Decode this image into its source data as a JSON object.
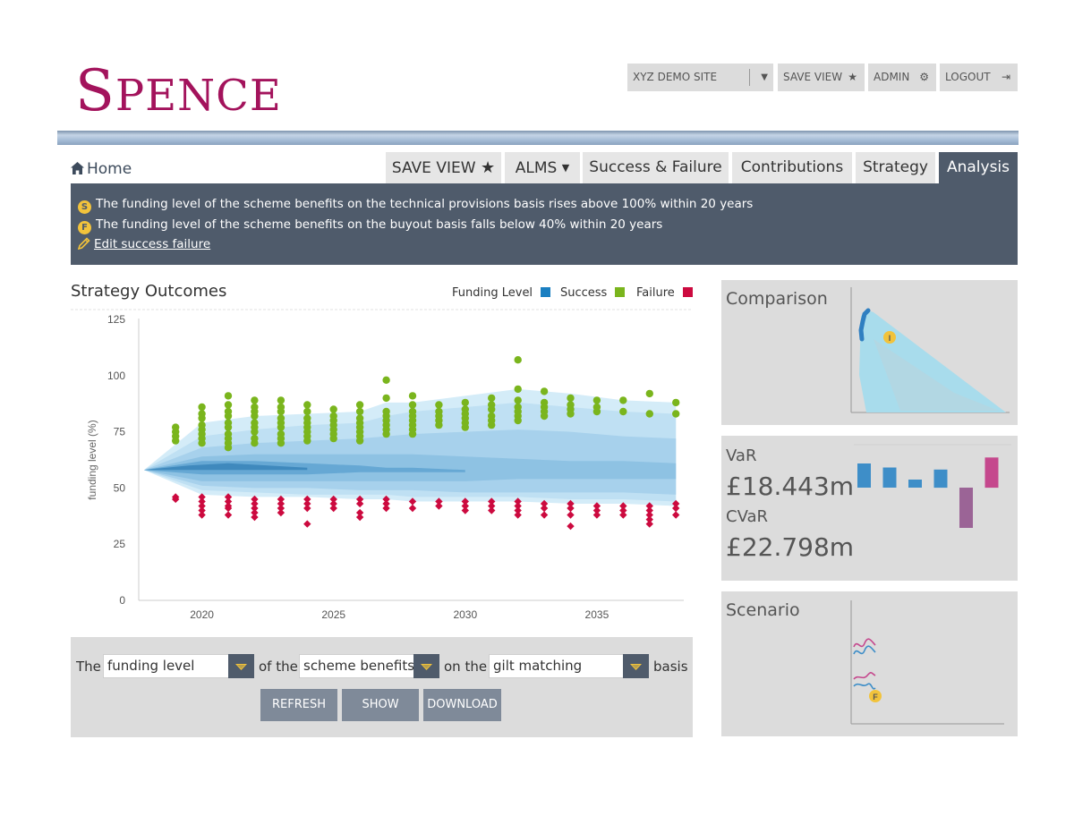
{
  "brand": {
    "logo_initial": "S",
    "logo_rest": "PENCE"
  },
  "topbar": {
    "site": "XYZ DEMO SITE",
    "save_view": "SAVE VIEW",
    "admin": "ADMIN",
    "logout": "LOGOUT"
  },
  "nav": {
    "home": "Home",
    "tabs": [
      "SAVE VIEW",
      "ALMS",
      "Success & Failure",
      "Contributions",
      "Strategy",
      "Analysis"
    ],
    "active": "Analysis"
  },
  "info": {
    "success_badge": "S",
    "success_text": "The funding level of the scheme benefits on the technical provisions basis rises above 100% within 20 years",
    "failure_badge": "F",
    "failure_text": "The funding level of the scheme benefits on the buyout basis falls below 40% within 20 years",
    "edit_link": "Edit success failure"
  },
  "chart": {
    "title": "Strategy Outcomes",
    "legend": [
      {
        "label": "Funding Level",
        "color": "#1a7fc1"
      },
      {
        "label": "Success",
        "color": "#7ab51d"
      },
      {
        "label": "Failure",
        "color": "#cc0a3f"
      }
    ]
  },
  "chart_data": {
    "type": "scatter",
    "title": "Strategy Outcomes",
    "xlabel": "",
    "ylabel": "funding level (%)",
    "xlim": [
      2017.6,
      2038.3
    ],
    "ylim": [
      0,
      125
    ],
    "x_ticks": [
      2020,
      2025,
      2030,
      2035
    ],
    "y_ticks": [
      0,
      25,
      50,
      75,
      100,
      125
    ],
    "fan": {
      "series": "Funding Level",
      "x": [
        2017.8,
        2020,
        2022,
        2024,
        2026,
        2027,
        2028,
        2030,
        2032,
        2034,
        2036,
        2038
      ],
      "bands": [
        {
          "low": [
            58,
            47,
            46,
            46,
            45,
            45,
            44,
            44,
            44,
            43,
            43,
            42
          ],
          "high": [
            58,
            79,
            82,
            83,
            84,
            88,
            88,
            91,
            94,
            92,
            89,
            88
          ]
        },
        {
          "low": [
            58,
            49,
            48,
            47,
            47,
            47,
            46,
            46,
            46,
            45,
            45,
            44
          ],
          "high": [
            58,
            73,
            76,
            78,
            79,
            82,
            84,
            86,
            88,
            86,
            84,
            83
          ]
        },
        {
          "low": [
            58,
            51,
            50,
            50,
            49,
            49,
            49,
            48,
            48,
            48,
            48,
            47
          ],
          "high": [
            58,
            68,
            70,
            71,
            72,
            73,
            74,
            75,
            76,
            75,
            73,
            72
          ]
        },
        {
          "low": [
            58,
            53,
            53,
            53,
            53,
            53,
            53,
            53,
            54,
            54,
            54,
            54
          ],
          "high": [
            58,
            64,
            65,
            65,
            65,
            65,
            65,
            64,
            63,
            62,
            62,
            61
          ]
        },
        {
          "low": [
            58,
            56,
            56,
            56,
            57,
            57,
            57,
            57
          ],
          "high": [
            58,
            62,
            62,
            61,
            60,
            59,
            59,
            58
          ],
          "x": [
            2017.8,
            2020,
            2022,
            2024,
            2026,
            2027,
            2028,
            2030
          ]
        },
        {
          "low": [
            58,
            58,
            58,
            58,
            58
          ],
          "high": [
            58,
            60,
            61,
            60,
            59
          ],
          "x": [
            2017.8,
            2019.5,
            2021,
            2022.5,
            2024
          ]
        }
      ]
    },
    "success": {
      "series": "Success",
      "points": [
        {
          "x": 2019,
          "y": [
            77,
            75,
            73,
            71
          ]
        },
        {
          "x": 2020,
          "y": [
            86,
            83,
            81,
            78,
            76,
            74,
            72,
            70
          ]
        },
        {
          "x": 2021,
          "y": [
            91,
            87,
            84,
            82,
            79,
            77,
            74,
            72,
            70,
            68
          ]
        },
        {
          "x": 2022,
          "y": [
            89,
            86,
            84,
            82,
            79,
            77,
            75,
            72,
            70
          ]
        },
        {
          "x": 2023,
          "y": [
            89,
            86,
            84,
            81,
            79,
            77,
            74,
            72,
            70
          ]
        },
        {
          "x": 2024,
          "y": [
            87,
            84,
            81,
            79,
            77,
            75,
            73,
            71
          ]
        },
        {
          "x": 2025,
          "y": [
            85,
            82,
            80,
            78,
            76,
            74,
            72
          ]
        },
        {
          "x": 2026,
          "y": [
            87,
            84,
            81,
            79,
            77,
            75,
            73,
            71
          ]
        },
        {
          "x": 2027,
          "y": [
            98,
            90,
            84,
            82,
            80,
            78,
            76,
            74
          ]
        },
        {
          "x": 2028,
          "y": [
            91,
            87,
            84,
            82,
            80,
            78,
            76,
            74
          ]
        },
        {
          "x": 2029,
          "y": [
            87,
            84,
            82,
            80,
            78
          ]
        },
        {
          "x": 2030,
          "y": [
            88,
            85,
            83,
            81,
            79,
            77
          ]
        },
        {
          "x": 2031,
          "y": [
            90,
            87,
            85,
            82,
            80,
            78
          ]
        },
        {
          "x": 2032,
          "y": [
            107,
            94,
            89,
            86,
            84,
            82,
            80
          ]
        },
        {
          "x": 2033,
          "y": [
            93,
            88,
            86,
            84,
            82
          ]
        },
        {
          "x": 2034,
          "y": [
            90,
            87,
            85,
            83
          ]
        },
        {
          "x": 2035,
          "y": [
            89,
            86,
            84
          ]
        },
        {
          "x": 2036,
          "y": [
            89,
            84
          ]
        },
        {
          "x": 2037,
          "y": [
            92,
            83
          ]
        },
        {
          "x": 2038,
          "y": [
            88,
            83
          ]
        }
      ]
    },
    "failure": {
      "series": "Failure",
      "points": [
        {
          "x": 2019,
          "y": [
            46,
            45
          ]
        },
        {
          "x": 2020,
          "y": [
            46,
            44,
            42,
            40,
            38
          ]
        },
        {
          "x": 2021,
          "y": [
            46,
            44,
            42,
            41,
            38
          ]
        },
        {
          "x": 2022,
          "y": [
            45,
            43,
            41,
            39,
            37
          ]
        },
        {
          "x": 2023,
          "y": [
            45,
            43,
            41,
            39
          ]
        },
        {
          "x": 2024,
          "y": [
            45,
            43,
            41,
            34
          ]
        },
        {
          "x": 2025,
          "y": [
            45,
            43,
            41
          ]
        },
        {
          "x": 2026,
          "y": [
            45,
            43,
            39,
            37
          ]
        },
        {
          "x": 2027,
          "y": [
            45,
            43,
            41
          ]
        },
        {
          "x": 2028,
          "y": [
            44,
            41
          ]
        },
        {
          "x": 2029,
          "y": [
            44,
            42
          ]
        },
        {
          "x": 2030,
          "y": [
            44,
            42,
            40
          ]
        },
        {
          "x": 2031,
          "y": [
            44,
            42,
            40
          ]
        },
        {
          "x": 2032,
          "y": [
            44,
            42,
            40,
            38
          ]
        },
        {
          "x": 2033,
          "y": [
            43,
            41,
            38
          ]
        },
        {
          "x": 2034,
          "y": [
            43,
            41,
            38,
            33
          ]
        },
        {
          "x": 2035,
          "y": [
            42,
            40,
            38
          ]
        },
        {
          "x": 2036,
          "y": [
            42,
            40,
            38
          ]
        },
        {
          "x": 2037,
          "y": [
            42,
            40,
            38,
            36,
            34
          ]
        },
        {
          "x": 2038,
          "y": [
            43,
            41,
            38
          ]
        }
      ]
    }
  },
  "controls": {
    "the": "The",
    "of_the": "of the",
    "on_the": "on the",
    "basis": "basis",
    "measure": "funding level",
    "benefits": "scheme benefits",
    "basis_value": "gilt matching",
    "refresh": "REFRESH",
    "show": "SHOW",
    "download": "DOWNLOAD"
  },
  "comparison": {
    "title": "Comparison",
    "marker": "I"
  },
  "risk": {
    "var_label": "VaR",
    "var_value": "£18.443m",
    "cvar_label": "CVaR",
    "cvar_value": "£22.798m",
    "bars": [
      {
        "value": 0.6,
        "color": "#3e8ec8"
      },
      {
        "value": 0.5,
        "color": "#3e8ec8"
      },
      {
        "value": 0.2,
        "color": "#3e8ec8"
      },
      {
        "value": 0.45,
        "color": "#3e8ec8"
      },
      {
        "value": -1.0,
        "color": "#9b6496"
      },
      {
        "value": 0.75,
        "color": "#c5488d"
      }
    ]
  },
  "scenario": {
    "title": "Scenario",
    "marker": "F"
  }
}
